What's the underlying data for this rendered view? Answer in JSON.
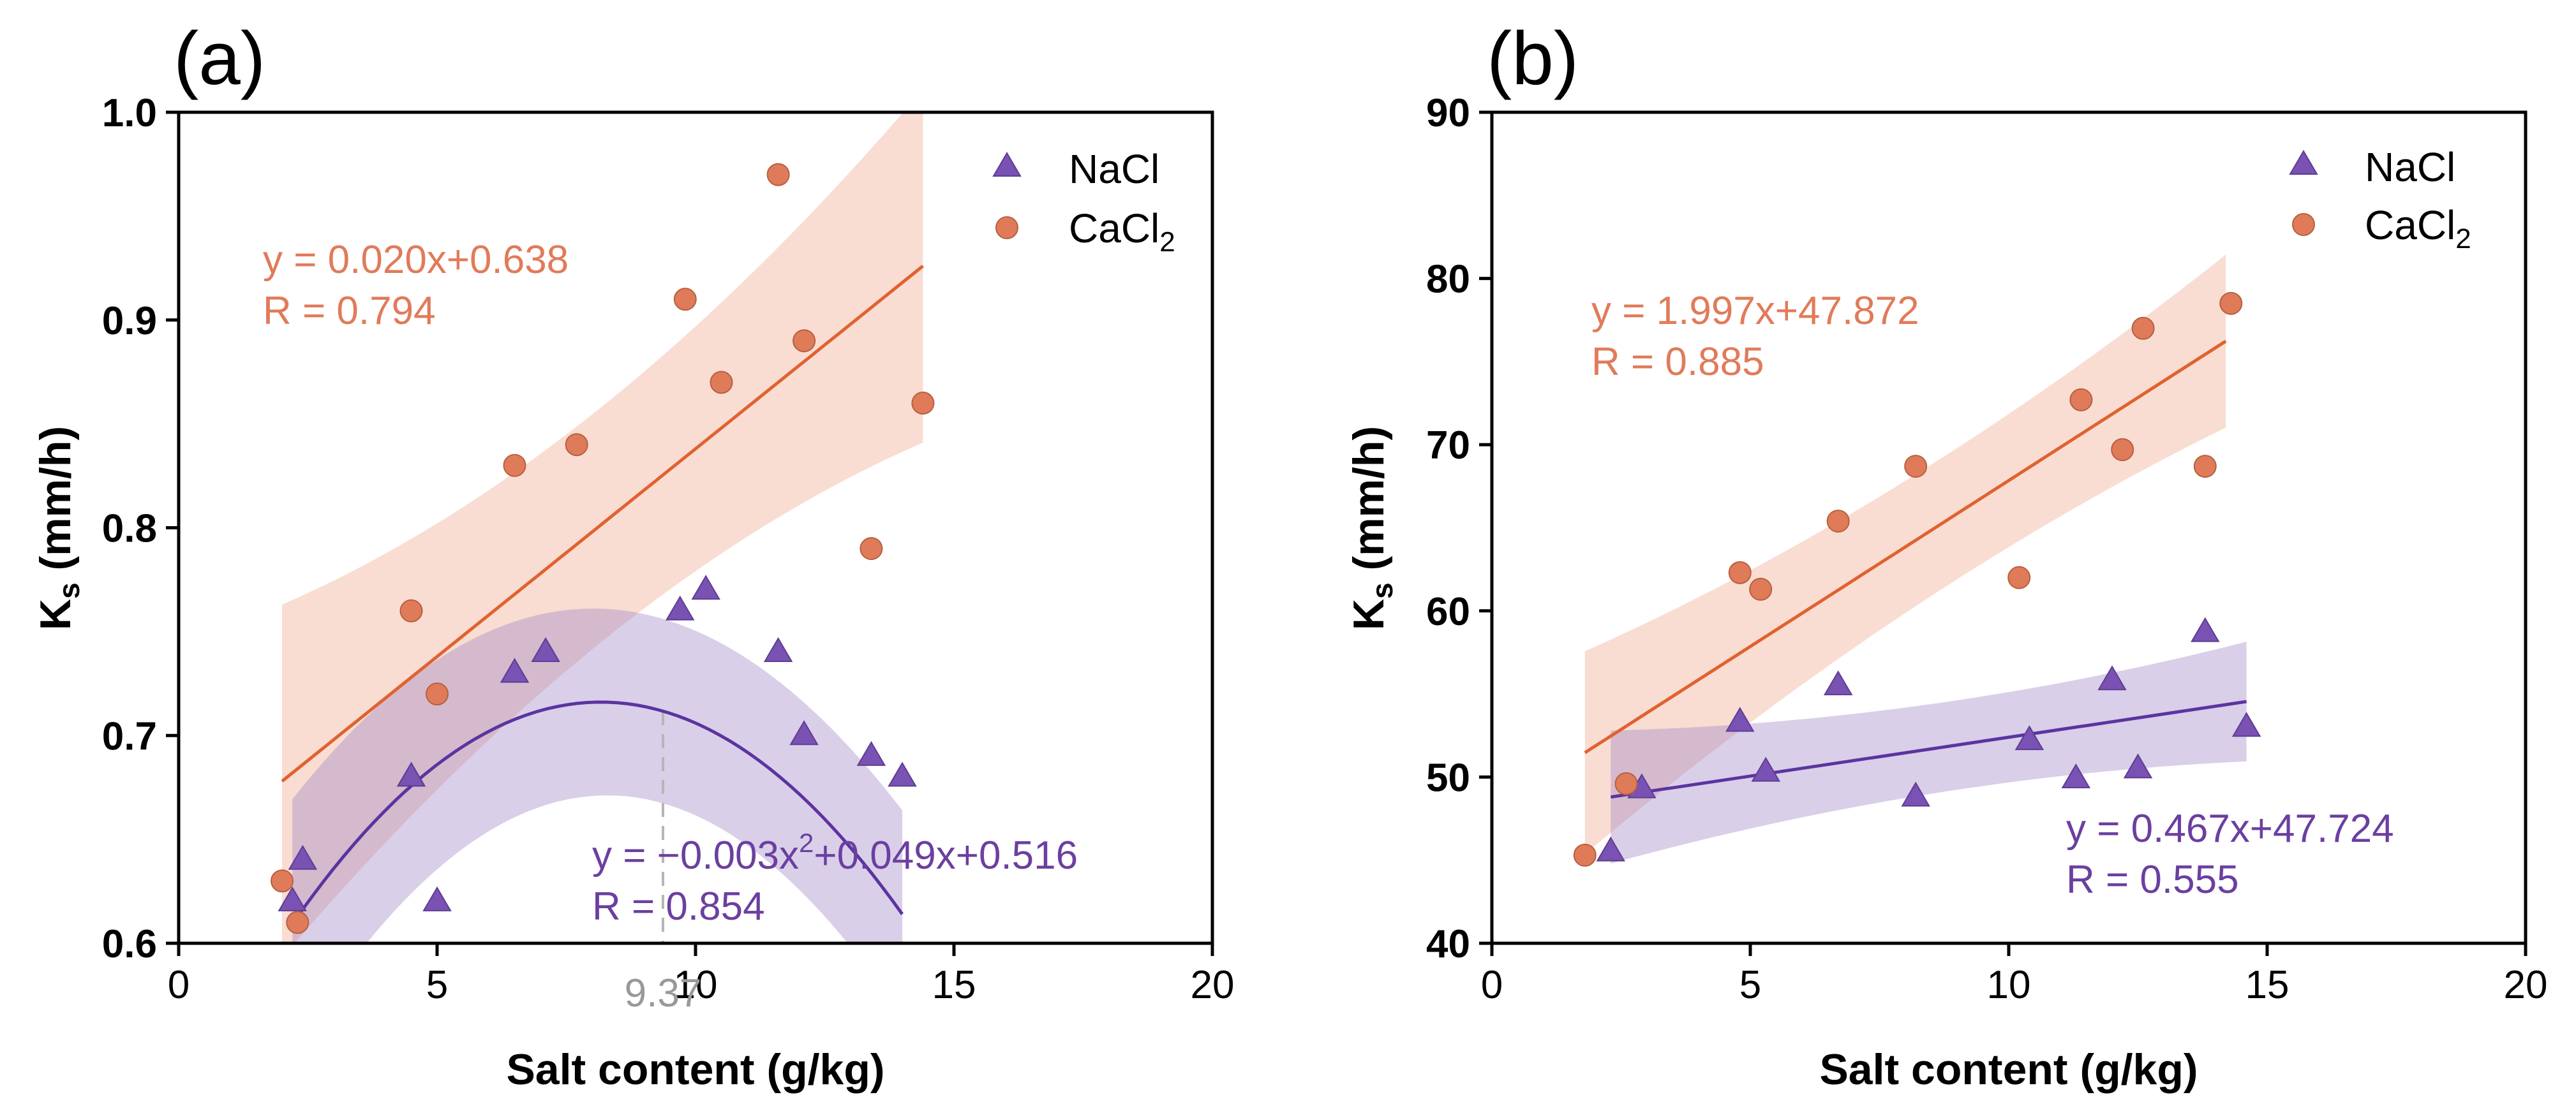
{
  "chart_data": [
    {
      "type": "scatter",
      "panel_label": "(a)",
      "xlabel": "Salt content (g/kg)",
      "ylabel_main": "K",
      "ylabel_sub": "s",
      "ylabel_unit": " (mm/h)",
      "xlim": [
        0,
        20
      ],
      "ylim": [
        0.6,
        1.0
      ],
      "xticks": [
        0,
        5,
        10,
        15,
        20
      ],
      "xtick_labels": [
        "0",
        "5",
        "10",
        "15",
        "20"
      ],
      "yticks": [
        0.6,
        0.7,
        0.8,
        0.9,
        1.0
      ],
      "ytick_labels": [
        "0.6",
        "0.7",
        "0.8",
        "0.9",
        "1.0"
      ],
      "legend": {
        "position": "top-right",
        "nacl": "NaCl",
        "cacl_main": "CaCl",
        "cacl_sub": "2"
      },
      "series": [
        {
          "name": "NaCl",
          "marker": "triangle",
          "color": "#7A52B3",
          "points": [
            [
              2.2,
              0.62
            ],
            [
              2.4,
              0.64
            ],
            [
              4.5,
              0.68
            ],
            [
              5.0,
              0.62
            ],
            [
              6.5,
              0.73
            ],
            [
              7.1,
              0.74
            ],
            [
              9.7,
              0.76
            ],
            [
              10.2,
              0.77
            ],
            [
              11.6,
              0.74
            ],
            [
              12.1,
              0.7
            ],
            [
              13.4,
              0.69
            ],
            [
              14.0,
              0.68
            ]
          ],
          "fit": {
            "kind": "quadratic",
            "coef": [
              -0.003,
              0.049,
              0.516
            ],
            "x_range": [
              2.2,
              14.0
            ],
            "band_halfwidth": [
              0.06,
              0.035,
              0.05
            ]
          },
          "equation_prefix": "y = −0.003x",
          "equation_sup": "2",
          "equation_suffix": "+0.049x+0.516",
          "r_text": "R = 0.854"
        },
        {
          "name": "CaCl2",
          "marker": "circle",
          "color": "#E07B5A",
          "points": [
            [
              2.0,
              0.63
            ],
            [
              2.3,
              0.61
            ],
            [
              4.5,
              0.76
            ],
            [
              5.0,
              0.72
            ],
            [
              6.5,
              0.83
            ],
            [
              7.7,
              0.84
            ],
            [
              9.8,
              0.91
            ],
            [
              10.5,
              0.87
            ],
            [
              11.6,
              0.97
            ],
            [
              12.1,
              0.89
            ],
            [
              13.4,
              0.79
            ],
            [
              14.4,
              0.86
            ]
          ],
          "fit": {
            "kind": "linear",
            "coef": [
              0.02,
              0.638
            ],
            "x_range": [
              2.0,
              14.4
            ],
            "band_halfwidth": [
              0.085,
              0.028,
              0.085
            ]
          },
          "equation_text": "y = 0.020x+0.638",
          "r_text": "R = 0.794"
        }
      ],
      "vline": {
        "x": 9.37,
        "label": "9.37"
      }
    },
    {
      "type": "scatter",
      "panel_label": "(b)",
      "xlabel": "Salt content (g/kg)",
      "ylabel_main": "K",
      "ylabel_sub": "s",
      "ylabel_unit": " (mm/h)",
      "xlim": [
        0,
        20
      ],
      "ylim": [
        40,
        90
      ],
      "xticks": [
        0,
        5,
        10,
        15,
        20
      ],
      "xtick_labels": [
        "0",
        "5",
        "10",
        "15",
        "20"
      ],
      "yticks": [
        40,
        50,
        60,
        70,
        80,
        90
      ],
      "ytick_labels": [
        "40",
        "50",
        "60",
        "70",
        "80",
        "90"
      ],
      "legend": {
        "position": "top-right",
        "nacl": "NaCl",
        "cacl_main": "CaCl",
        "cacl_sub": "2"
      },
      "series": [
        {
          "name": "NaCl",
          "marker": "triangle",
          "color": "#7A52B3",
          "points": [
            [
              2.3,
              45.5
            ],
            [
              2.9,
              49.3
            ],
            [
              4.8,
              53.3
            ],
            [
              5.3,
              50.3
            ],
            [
              6.7,
              55.5
            ],
            [
              8.2,
              48.8
            ],
            [
              10.4,
              52.2
            ],
            [
              11.3,
              49.9
            ],
            [
              12.0,
              55.8
            ],
            [
              12.5,
              50.5
            ],
            [
              13.8,
              58.7
            ],
            [
              14.6,
              53.0
            ]
          ],
          "fit": {
            "kind": "linear",
            "coef": [
              0.467,
              47.724
            ],
            "x_range": [
              2.3,
              14.6
            ],
            "band_halfwidth": [
              4.0,
              1.6,
              3.6
            ]
          },
          "equation_text": "y = 0.467x+47.724",
          "r_text": "R = 0.555"
        },
        {
          "name": "CaCl2",
          "marker": "circle",
          "color": "#E07B5A",
          "points": [
            [
              1.8,
              45.3
            ],
            [
              2.6,
              49.6
            ],
            [
              4.8,
              62.3
            ],
            [
              5.2,
              61.3
            ],
            [
              6.7,
              65.4
            ],
            [
              8.2,
              68.7
            ],
            [
              10.2,
              62.0
            ],
            [
              11.4,
              72.7
            ],
            [
              12.2,
              69.7
            ],
            [
              12.6,
              77.0
            ],
            [
              13.8,
              68.7
            ],
            [
              14.3,
              78.5
            ]
          ],
          "fit": {
            "kind": "linear",
            "coef": [
              1.997,
              47.872
            ],
            "x_range": [
              1.8,
              14.2
            ],
            "band_halfwidth": [
              6.1,
              2.3,
              5.2
            ]
          },
          "equation_text": "y = 1.997x+47.872",
          "r_text": "R = 0.885"
        }
      ]
    }
  ]
}
